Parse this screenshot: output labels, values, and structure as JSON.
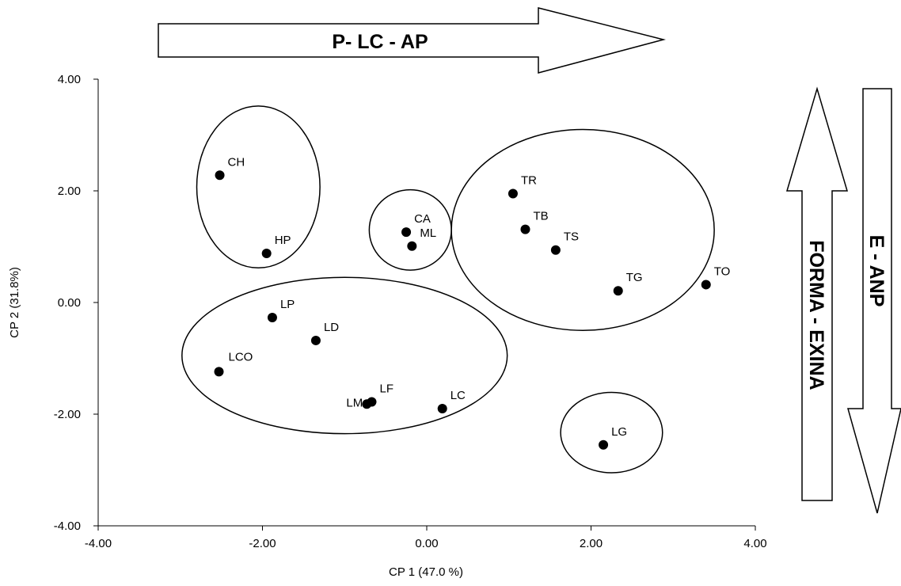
{
  "chart_data": {
    "type": "scatter",
    "xlabel": "CP 1 (47.0 %)",
    "ylabel": "CP 2 (31.8%)",
    "xlim": [
      -4,
      4
    ],
    "ylim": [
      -4,
      4
    ],
    "xticks": [
      "-4.00",
      "-2.00",
      "0.00",
      "2.00",
      "4.00"
    ],
    "yticks": [
      "-4.00",
      "-2.00",
      "0.00",
      "2.00",
      "4.00"
    ],
    "grid": false,
    "points": [
      {
        "label": "CH",
        "x": -2.52,
        "y": 2.28
      },
      {
        "label": "HP",
        "x": -1.95,
        "y": 0.88
      },
      {
        "label": "CA",
        "x": -0.25,
        "y": 1.26
      },
      {
        "label": "ML",
        "x": -0.18,
        "y": 1.01
      },
      {
        "label": "TR",
        "x": 1.05,
        "y": 1.95
      },
      {
        "label": "TB",
        "x": 1.2,
        "y": 1.31
      },
      {
        "label": "TS",
        "x": 1.57,
        "y": 0.94
      },
      {
        "label": "TG",
        "x": 2.33,
        "y": 0.21
      },
      {
        "label": "TO",
        "x": 3.4,
        "y": 0.32
      },
      {
        "label": "LP",
        "x": -1.88,
        "y": -0.27
      },
      {
        "label": "LD",
        "x": -1.35,
        "y": -0.68
      },
      {
        "label": "LCO",
        "x": -2.53,
        "y": -1.24
      },
      {
        "label": "LM",
        "x": -0.73,
        "y": -1.82
      },
      {
        "label": "LF",
        "x": -0.67,
        "y": -1.78
      },
      {
        "label": "LC",
        "x": 0.19,
        "y": -1.9
      },
      {
        "label": "LG",
        "x": 2.15,
        "y": -2.55
      }
    ],
    "groups": [
      {
        "members": [
          "CH",
          "HP"
        ],
        "cx": -2.05,
        "cy": 2.07,
        "rx": 0.75,
        "ry": 1.45
      },
      {
        "members": [
          "CA",
          "ML"
        ],
        "cx": -0.2,
        "cy": 1.3,
        "rx": 0.5,
        "ry": 0.72
      },
      {
        "members": [
          "TR",
          "TB",
          "TS",
          "TG",
          "TO"
        ],
        "cx": 1.9,
        "cy": 1.3,
        "rx": 1.6,
        "ry": 1.8
      },
      {
        "members": [
          "LP",
          "LD",
          "LCO",
          "LM",
          "LF",
          "LC"
        ],
        "cx": -1.0,
        "cy": -0.95,
        "rx": 1.98,
        "ry": 1.4
      },
      {
        "members": [
          "LG"
        ],
        "cx": 2.25,
        "cy": -2.33,
        "rx": 0.62,
        "ry": 0.72
      }
    ],
    "arrows": [
      {
        "label": "P- LC - AP",
        "direction": "right"
      },
      {
        "label": "FORMA - EXINA",
        "direction": "up"
      },
      {
        "label": "E - ANP",
        "direction": "down"
      }
    ]
  }
}
